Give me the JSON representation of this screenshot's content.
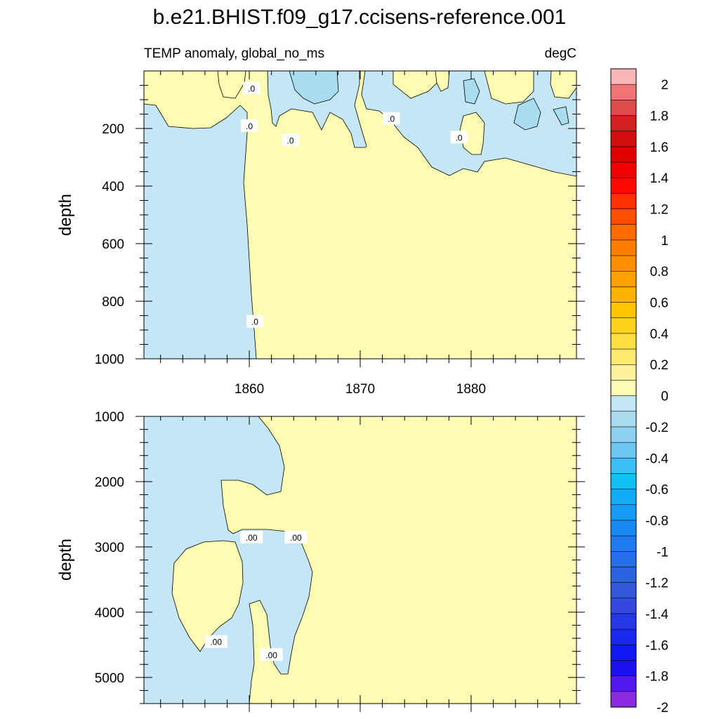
{
  "title": "b.e21.BHIST.f09_g17.ccisens-reference.001",
  "chart_data": [
    {
      "type": "heatmap",
      "panel": "upper",
      "left_label": "TEMP anomaly, global_no_ms",
      "right_label": "degC",
      "ylabel": "depth",
      "xlabel": "",
      "xlim": [
        1850.5,
        1889.5
      ],
      "ylim": [
        1000,
        0
      ],
      "xticks": [
        "1860",
        "1870",
        "1880"
      ],
      "xtick_values": [
        1860,
        1870,
        1880
      ],
      "yticks": [
        "200",
        "400",
        "600",
        "800",
        "1000"
      ],
      "ytick_values": [
        200,
        400,
        600,
        800,
        1000
      ],
      "contour_labels": [
        {
          "text": ".0",
          "x": 1860.2,
          "y": 60
        },
        {
          "text": ".0",
          "x": 1860.0,
          "y": 190
        },
        {
          "text": ".0",
          "x": 1863.7,
          "y": 240
        },
        {
          "text": ".0",
          "x": 1872.8,
          "y": 165
        },
        {
          "text": ".0",
          "x": 1878.9,
          "y": 230
        },
        {
          "text": ".0",
          "x": 1860.5,
          "y": 870
        }
      ],
      "fields": [
        {
          "class": "-0.2..0",
          "description": "negative anomaly region, left side, full depth"
        },
        {
          "class": "0..0.2",
          "description": "positive anomaly region, most of the domain below 300 m"
        },
        {
          "class": "-0.4..-0.2",
          "description": "small cores near surface"
        }
      ]
    },
    {
      "type": "heatmap",
      "panel": "lower",
      "ylabel": "depth",
      "xlabel": "",
      "xlim": [
        1850.5,
        1889.5
      ],
      "ylim": [
        5400,
        1000
      ],
      "yticks": [
        "1000",
        "2000",
        "3000",
        "4000",
        "5000"
      ],
      "ytick_values": [
        1000,
        2000,
        3000,
        4000,
        5000
      ],
      "contour_labels": [
        {
          "text": ".00",
          "x": 1860.2,
          "y": 2850
        },
        {
          "text": ".00",
          "x": 1864.2,
          "y": 2850
        },
        {
          "text": ".00",
          "x": 1857.0,
          "y": 4450
        },
        {
          "text": ".00",
          "x": 1862.0,
          "y": 4650
        }
      ],
      "fields": [
        {
          "class": "-0.2..0",
          "description": "negative anomaly region, left side"
        },
        {
          "class": "0..0.2",
          "description": "positive anomaly region, right side and inner lens"
        }
      ]
    }
  ],
  "colorbar": {
    "labels": [
      "2",
      "1.8",
      "1.6",
      "1.4",
      "1.2",
      "1",
      "0.8",
      "0.6",
      "0.4",
      "0.2",
      "0",
      "-0.2",
      "-0.4",
      "-0.6",
      "-0.8",
      "-1",
      "-1.2",
      "-1.4",
      "-1.6",
      "-1.8",
      "-2"
    ],
    "colors": [
      "#fbb7b7",
      "#f07676",
      "#e14a4a",
      "#d31f1f",
      "#d10f0f",
      "#e00000",
      "#f20000",
      "#ff0a00",
      "#ff3000",
      "#ff4f00",
      "#ff6a00",
      "#ff7e00",
      "#ff8f00",
      "#ffa000",
      "#ffb300",
      "#ffc300",
      "#ffd21e",
      "#ffe040",
      "#ffe870",
      "#fff3a0",
      "#fefcb2",
      "#c5e6f4",
      "#aadcf0",
      "#8ed0ef",
      "#6bc8f2",
      "#3cbff5",
      "#10c1f5",
      "#11acf6",
      "#149bf6",
      "#1a8af3",
      "#1f7cf0",
      "#2570e8",
      "#2a62e0",
      "#3257d8",
      "#3348dc",
      "#2538e6",
      "#1828ee",
      "#1019f4",
      "#1a10f2",
      "#5218ec",
      "#8a2be2"
    ]
  }
}
